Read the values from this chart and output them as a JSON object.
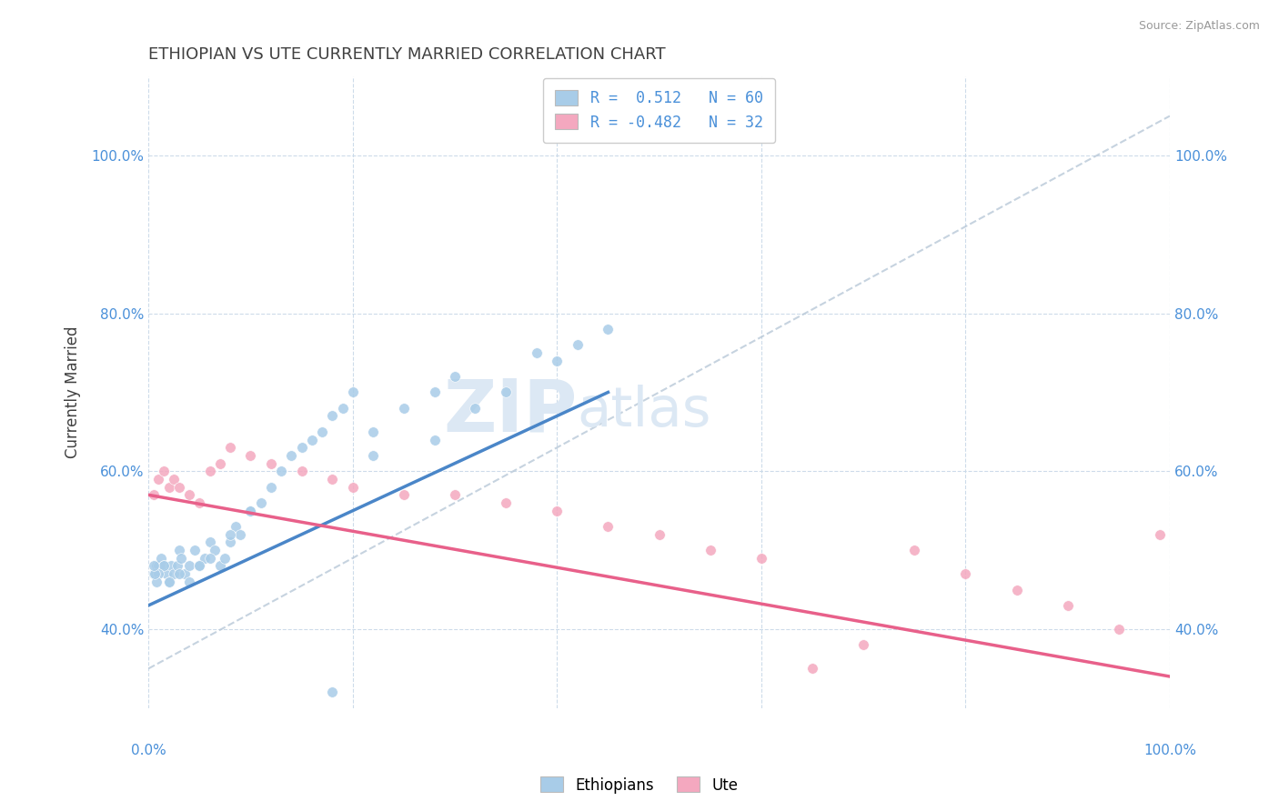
{
  "title": "ETHIOPIAN VS UTE CURRENTLY MARRIED CORRELATION CHART",
  "source": "Source: ZipAtlas.com",
  "ylabel": "Currently Married",
  "legend_blue_r": "R =  0.512",
  "legend_blue_n": "N = 60",
  "legend_pink_r": "R = -0.482",
  "legend_pink_n": "N = 32",
  "blue_color": "#a8cce8",
  "pink_color": "#f4a8bf",
  "blue_line_color": "#4a86c8",
  "pink_line_color": "#e8608a",
  "diag_line_color": "#b8c8d8",
  "background_color": "#ffffff",
  "grid_color": "#c8d8e8",
  "title_color": "#404040",
  "axis_label_color": "#4a90d9",
  "watermark_color": "#dce8f4",
  "xlim": [
    0,
    100
  ],
  "ylim": [
    30,
    110
  ],
  "yticks": [
    40,
    60,
    80,
    100
  ],
  "ethiopian_x": [
    0.5,
    0.8,
    1.0,
    1.2,
    1.5,
    1.8,
    2.0,
    2.2,
    2.5,
    2.8,
    3.0,
    3.2,
    3.5,
    4.0,
    4.5,
    5.0,
    5.5,
    6.0,
    6.5,
    7.0,
    7.5,
    8.0,
    8.5,
    9.0,
    10.0,
    11.0,
    12.0,
    13.0,
    14.0,
    15.0,
    16.0,
    17.0,
    18.0,
    19.0,
    20.0,
    22.0,
    25.0,
    28.0,
    30.0,
    32.0,
    35.0,
    38.0,
    40.0,
    42.0,
    45.0,
    22.0,
    28.0,
    10.0,
    8.0,
    6.0,
    5.0,
    4.0,
    3.0,
    2.0,
    1.5,
    1.0,
    0.8,
    0.6,
    0.5,
    18.0
  ],
  "ethiopian_y": [
    47.0,
    48.0,
    48.0,
    49.0,
    48.0,
    47.0,
    46.0,
    48.0,
    47.0,
    48.0,
    50.0,
    49.0,
    47.0,
    48.0,
    50.0,
    48.0,
    49.0,
    51.0,
    50.0,
    48.0,
    49.0,
    51.0,
    53.0,
    52.0,
    55.0,
    56.0,
    58.0,
    60.0,
    62.0,
    63.0,
    64.0,
    65.0,
    67.0,
    68.0,
    70.0,
    65.0,
    68.0,
    70.0,
    72.0,
    68.0,
    70.0,
    75.0,
    74.0,
    76.0,
    78.0,
    62.0,
    64.0,
    55.0,
    52.0,
    49.0,
    48.0,
    46.0,
    47.0,
    46.0,
    48.0,
    47.0,
    46.0,
    47.0,
    48.0,
    32.0
  ],
  "ute_x": [
    0.5,
    1.0,
    1.5,
    2.0,
    2.5,
    3.0,
    4.0,
    5.0,
    6.0,
    7.0,
    8.0,
    10.0,
    12.0,
    15.0,
    18.0,
    20.0,
    25.0,
    30.0,
    35.0,
    40.0,
    45.0,
    50.0,
    55.0,
    60.0,
    65.0,
    70.0,
    75.0,
    80.0,
    85.0,
    90.0,
    95.0,
    99.0
  ],
  "ute_y": [
    57.0,
    59.0,
    60.0,
    58.0,
    59.0,
    58.0,
    57.0,
    56.0,
    60.0,
    61.0,
    63.0,
    62.0,
    61.0,
    60.0,
    59.0,
    58.0,
    57.0,
    57.0,
    56.0,
    55.0,
    53.0,
    52.0,
    50.0,
    49.0,
    35.0,
    38.0,
    50.0,
    47.0,
    45.0,
    43.0,
    40.0,
    52.0
  ],
  "blue_line_x0": 0,
  "blue_line_y0": 43,
  "blue_line_x1": 45,
  "blue_line_y1": 70,
  "pink_line_x0": 0,
  "pink_line_y0": 57,
  "pink_line_x1": 100,
  "pink_line_y1": 34
}
